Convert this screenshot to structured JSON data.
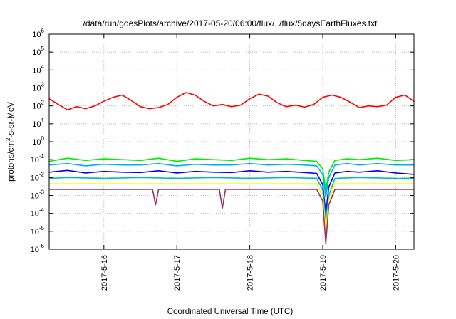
{
  "chart_data": {
    "type": "line",
    "title": "/data/run/goesPlots/archive/2017-05-20/06:00/flux/../flux/5daysEarthFluxes.txt",
    "xlabel": "Coordinated Universal Time (UTC)",
    "ylabel_parts": [
      "protons/cm",
      "2",
      "-s-sr-MeV"
    ],
    "y_scale": "log",
    "ylim": [
      1e-06,
      1000000.0
    ],
    "y_ticks": [
      {
        "base": "10",
        "exp": "-6",
        "value": 1e-06
      },
      {
        "base": "10",
        "exp": "-5",
        "value": 1e-05
      },
      {
        "base": "10",
        "exp": "-4",
        "value": 0.0001
      },
      {
        "base": "10",
        "exp": "-3",
        "value": 0.001
      },
      {
        "base": "10",
        "exp": "-2",
        "value": 0.01
      },
      {
        "base": "10",
        "exp": "-1",
        "value": 0.1
      },
      {
        "base": "10",
        "exp": "0",
        "value": 1
      },
      {
        "base": "10",
        "exp": "1",
        "value": 10
      },
      {
        "base": "10",
        "exp": "2",
        "value": 100
      },
      {
        "base": "10",
        "exp": "3",
        "value": 1000
      },
      {
        "base": "10",
        "exp": "4",
        "value": 10000
      },
      {
        "base": "10",
        "exp": "5",
        "value": 100000
      },
      {
        "base": "10",
        "exp": "6",
        "value": 1000000
      }
    ],
    "xlim": [
      "2017-05-15T06:00",
      "2017-05-20T06:00"
    ],
    "x_ticks": [
      "2017-5-16",
      "2017-5-17",
      "2017-5-18",
      "2017-5-19",
      "2017-5-20"
    ],
    "grid": true,
    "series": [
      {
        "color": "#ff0000",
        "x": [
          "2017-05-15T06:00",
          "2017-05-15T09:00",
          "2017-05-15T12:00",
          "2017-05-15T15:00",
          "2017-05-15T18:00",
          "2017-05-15T21:00",
          "2017-05-16T00:00",
          "2017-05-16T03:00",
          "2017-05-16T06:00",
          "2017-05-16T09:00",
          "2017-05-16T12:00",
          "2017-05-16T15:00",
          "2017-05-16T18:00",
          "2017-05-16T21:00",
          "2017-05-17T00:00",
          "2017-05-17T03:00",
          "2017-05-17T06:00",
          "2017-05-17T09:00",
          "2017-05-17T12:00",
          "2017-05-17T15:00",
          "2017-05-17T18:00",
          "2017-05-17T21:00",
          "2017-05-18T00:00",
          "2017-05-18T03:00",
          "2017-05-18T06:00",
          "2017-05-18T09:00",
          "2017-05-18T12:00",
          "2017-05-18T15:00",
          "2017-05-18T18:00",
          "2017-05-18T21:00",
          "2017-05-19T00:00",
          "2017-05-19T03:00",
          "2017-05-19T06:00",
          "2017-05-19T09:00",
          "2017-05-19T12:00",
          "2017-05-19T15:00",
          "2017-05-19T18:00",
          "2017-05-19T21:00",
          "2017-05-20T00:00",
          "2017-05-20T03:00",
          "2017-05-20T06:00"
        ],
        "y": [
          250,
          120,
          60,
          90,
          70,
          100,
          180,
          300,
          400,
          200,
          90,
          70,
          80,
          120,
          300,
          550,
          400,
          180,
          100,
          120,
          90,
          110,
          250,
          450,
          350,
          150,
          90,
          110,
          85,
          120,
          300,
          400,
          300,
          160,
          80,
          100,
          90,
          110,
          300,
          400,
          180
        ]
      },
      {
        "color": "#00ee00",
        "x": [
          "2017-05-15T06:00",
          "2017-05-15T12:00",
          "2017-05-15T18:00",
          "2017-05-16T00:00",
          "2017-05-16T06:00",
          "2017-05-16T12:00",
          "2017-05-16T18:00",
          "2017-05-17T00:00",
          "2017-05-17T06:00",
          "2017-05-17T12:00",
          "2017-05-17T18:00",
          "2017-05-18T00:00",
          "2017-05-18T06:00",
          "2017-05-18T12:00",
          "2017-05-18T18:00",
          "2017-05-18T22:00",
          "2017-05-19T00:00",
          "2017-05-19T01:00",
          "2017-05-19T02:00",
          "2017-05-19T04:00",
          "2017-05-19T08:00",
          "2017-05-19T12:00",
          "2017-05-19T18:00",
          "2017-05-20T00:00",
          "2017-05-20T06:00"
        ],
        "y": [
          0.08,
          0.12,
          0.09,
          0.11,
          0.1,
          0.09,
          0.12,
          0.08,
          0.11,
          0.1,
          0.09,
          0.12,
          0.1,
          0.11,
          0.09,
          0.08,
          0.03,
          0.002,
          0.02,
          0.09,
          0.11,
          0.1,
          0.12,
          0.09,
          0.1
        ]
      },
      {
        "color": "#00aaff",
        "x": [
          "2017-05-15T06:00",
          "2017-05-15T12:00",
          "2017-05-15T18:00",
          "2017-05-16T00:00",
          "2017-05-16T06:00",
          "2017-05-16T12:00",
          "2017-05-16T18:00",
          "2017-05-17T00:00",
          "2017-05-17T06:00",
          "2017-05-17T12:00",
          "2017-05-17T18:00",
          "2017-05-18T00:00",
          "2017-05-18T06:00",
          "2017-05-18T12:00",
          "2017-05-18T18:00",
          "2017-05-18T22:00",
          "2017-05-19T00:00",
          "2017-05-19T01:00",
          "2017-05-19T02:00",
          "2017-05-19T04:00",
          "2017-05-19T08:00",
          "2017-05-19T12:00",
          "2017-05-19T18:00",
          "2017-05-20T00:00",
          "2017-05-20T06:00"
        ],
        "y": [
          0.05,
          0.06,
          0.045,
          0.055,
          0.05,
          0.05,
          0.06,
          0.045,
          0.055,
          0.05,
          0.05,
          0.06,
          0.05,
          0.055,
          0.05,
          0.045,
          0.015,
          0.0008,
          0.01,
          0.05,
          0.06,
          0.05,
          0.06,
          0.05,
          0.05
        ]
      },
      {
        "color": "#0000ee",
        "x": [
          "2017-05-15T06:00",
          "2017-05-15T12:00",
          "2017-05-15T18:00",
          "2017-05-16T00:00",
          "2017-05-16T06:00",
          "2017-05-16T12:00",
          "2017-05-16T18:00",
          "2017-05-17T00:00",
          "2017-05-17T06:00",
          "2017-05-17T12:00",
          "2017-05-17T18:00",
          "2017-05-18T00:00",
          "2017-05-18T06:00",
          "2017-05-18T12:00",
          "2017-05-18T18:00",
          "2017-05-18T22:00",
          "2017-05-19T00:00",
          "2017-05-19T01:00",
          "2017-05-19T02:00",
          "2017-05-19T04:00",
          "2017-05-19T08:00",
          "2017-05-19T12:00",
          "2017-05-19T18:00",
          "2017-05-20T00:00",
          "2017-05-20T06:00"
        ],
        "y": [
          0.02,
          0.025,
          0.018,
          0.022,
          0.02,
          0.019,
          0.024,
          0.018,
          0.022,
          0.02,
          0.019,
          0.024,
          0.02,
          0.022,
          0.019,
          0.017,
          0.004,
          0.0001,
          0.003,
          0.018,
          0.022,
          0.02,
          0.024,
          0.018,
          0.015
        ]
      },
      {
        "color": "#00bbbb",
        "x": [
          "2017-05-15T06:00",
          "2017-05-15T12:00",
          "2017-05-16T00:00",
          "2017-05-16T12:00",
          "2017-05-17T00:00",
          "2017-05-17T12:00",
          "2017-05-18T00:00",
          "2017-05-18T12:00",
          "2017-05-18T22:00",
          "2017-05-19T00:00",
          "2017-05-19T01:00",
          "2017-05-19T02:00",
          "2017-05-19T04:00",
          "2017-05-19T12:00",
          "2017-05-20T00:00",
          "2017-05-20T06:00"
        ],
        "y": [
          0.009,
          0.01,
          0.009,
          0.01,
          0.009,
          0.01,
          0.009,
          0.01,
          0.009,
          0.002,
          3e-05,
          0.001,
          0.009,
          0.01,
          0.009,
          0.009
        ]
      },
      {
        "color": "#ffff00",
        "x": [
          "2017-05-15T06:00",
          "2017-05-16T00:00",
          "2017-05-17T00:00",
          "2017-05-18T00:00",
          "2017-05-18T22:00",
          "2017-05-19T00:00",
          "2017-05-19T01:00",
          "2017-05-19T02:00",
          "2017-05-19T04:00",
          "2017-05-20T00:00",
          "2017-05-20T06:00"
        ],
        "y": [
          0.0045,
          0.0045,
          0.0045,
          0.0045,
          0.0045,
          0.001,
          1e-05,
          0.0005,
          0.0045,
          0.0045,
          0.0045
        ]
      },
      {
        "color": "#993366",
        "x": [
          "2017-05-15T06:00",
          "2017-05-15T12:00",
          "2017-05-16T00:00",
          "2017-05-16T12:00",
          "2017-05-16T16:00",
          "2017-05-16T17:00",
          "2017-05-16T18:00",
          "2017-05-17T00:00",
          "2017-05-17T12:00",
          "2017-05-17T14:00",
          "2017-05-17T15:00",
          "2017-05-17T16:00",
          "2017-05-18T00:00",
          "2017-05-18T12:00",
          "2017-05-18T22:00",
          "2017-05-19T00:00",
          "2017-05-19T01:00",
          "2017-05-19T02:00",
          "2017-05-19T04:00",
          "2017-05-19T12:00",
          "2017-05-20T00:00",
          "2017-05-20T06:00"
        ],
        "y": [
          0.0022,
          0.0022,
          0.0022,
          0.0022,
          0.0022,
          0.0003,
          0.0022,
          0.0022,
          0.0022,
          0.0022,
          0.0002,
          0.0022,
          0.0022,
          0.0022,
          0.0022,
          0.0005,
          2e-06,
          0.0003,
          0.0022,
          0.0022,
          0.0022,
          0.0022
        ]
      }
    ]
  }
}
